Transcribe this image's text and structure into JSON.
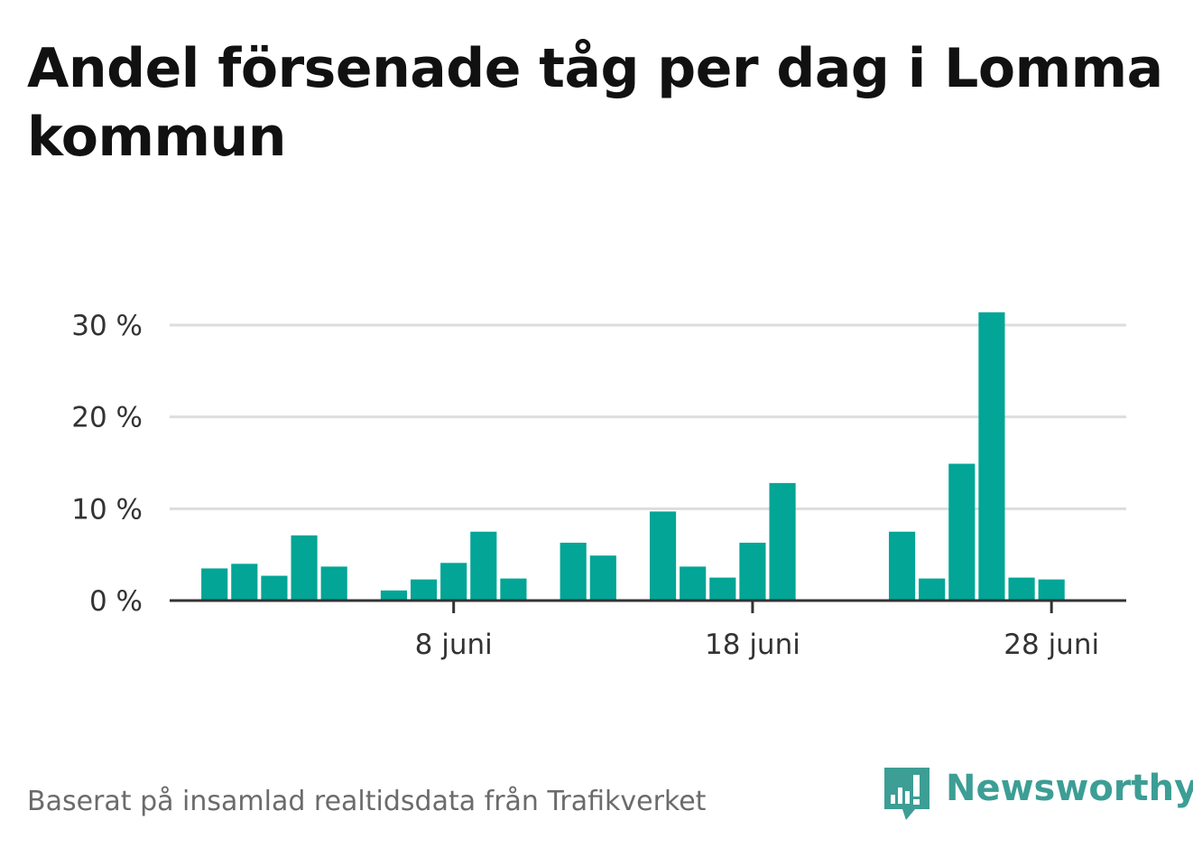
{
  "title": "Andel försenade tåg per dag i Lomma kommun",
  "footer": "Baserat på insamlad realtidsdata från Trafikverket",
  "logo": {
    "text": "Newsworthy",
    "icon": "newsworthy-chart-bubble-icon",
    "color": "#3c9e95"
  },
  "chart_data": {
    "type": "bar",
    "title": "Andel försenade tåg per dag i Lomma kommun",
    "bar_color": "#02a596",
    "gridlines": true,
    "ylim": [
      0,
      30
    ],
    "yticks": [
      {
        "value": 0,
        "label": "0 %"
      },
      {
        "value": 10,
        "label": "10 %"
      },
      {
        "value": 20,
        "label": "20 %"
      },
      {
        "value": 30,
        "label": "30 %"
      }
    ],
    "xlim": [
      -0.5,
      31.5
    ],
    "xticks": [
      {
        "day": 9,
        "label": "8 juni"
      },
      {
        "day": 19,
        "label": "18 juni"
      },
      {
        "day": 29,
        "label": "28 juni"
      }
    ],
    "x": [
      1,
      2,
      3,
      4,
      5,
      6,
      7,
      8,
      9,
      10,
      11,
      12,
      13,
      14,
      15,
      16,
      17,
      18,
      19,
      20,
      21,
      22,
      23,
      24,
      25,
      26,
      27,
      28,
      29,
      30
    ],
    "values": [
      3.5,
      4.0,
      2.7,
      7.1,
      3.7,
      null,
      1.1,
      2.3,
      4.1,
      7.5,
      2.4,
      null,
      6.3,
      4.9,
      null,
      9.7,
      3.7,
      2.5,
      6.3,
      12.8,
      null,
      null,
      null,
      7.5,
      2.4,
      14.9,
      31.4,
      2.5,
      2.3,
      null
    ]
  }
}
